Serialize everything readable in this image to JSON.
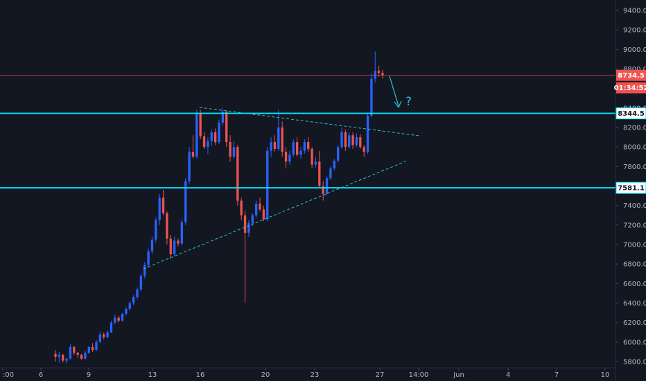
{
  "chart_data": {
    "type": "candlestick",
    "y_ticks": [
      "9400.0",
      "9200.0",
      "9000.0",
      "8800.0",
      "8600.0",
      "8400.0",
      "8200.0",
      "8000.0",
      "7800.0",
      "7600.0",
      "7400.0",
      "7200.0",
      "7000.0",
      "6800.0",
      "6600.0",
      "6400.0",
      "6200.0",
      "6000.0",
      "5800.0"
    ],
    "y_tick_values": [
      9400,
      9200,
      9000,
      8800,
      8600,
      8400,
      8200,
      8000,
      7800,
      7600,
      7400,
      7200,
      7000,
      6800,
      6600,
      6400,
      6200,
      6000,
      5800
    ],
    "x_ticks": [
      ":00",
      "6",
      "9",
      "13",
      "16",
      "20",
      "23",
      "27",
      "14:00",
      "Jun",
      "4",
      "7",
      "10"
    ],
    "ylim": [
      5790,
      9510
    ],
    "price_levels": [
      {
        "label": "8734.5",
        "value": 8734.5,
        "color": "#ef5350",
        "style": "thin"
      },
      {
        "label": "8344.5",
        "value": 8344.5,
        "color": "#00e5ff",
        "style": "thick"
      },
      {
        "label": "7581.1",
        "value": 7581.1,
        "color": "#00e5ff",
        "style": "thick"
      }
    ],
    "countdown": "01:34:52",
    "annotation": "?",
    "trendlines": [
      {
        "name": "upper-trendline",
        "from": {
          "x": "16",
          "y": 8390
        },
        "to": {
          "x": "1 Jun 00:00",
          "y": 8120
        },
        "style": "dashed",
        "color": "#26c6da"
      },
      {
        "name": "lower-trendline",
        "from": {
          "x": "12",
          "y": 6760
        },
        "to": {
          "x": "1 Jun 00:00",
          "y": 7840
        },
        "style": "dashed",
        "color": "#26c6da"
      }
    ],
    "colors": {
      "up": "#2962ff",
      "down": "#ef5350",
      "background": "#131722",
      "axis_text": "#b2b5be"
    },
    "candles": [
      [
        5880,
        5920,
        5800,
        5850
      ],
      [
        5850,
        5900,
        5790,
        5870
      ],
      [
        5870,
        5880,
        5790,
        5810
      ],
      [
        5810,
        5840,
        5780,
        5830
      ],
      [
        5830,
        5980,
        5820,
        5950
      ],
      [
        5950,
        5960,
        5870,
        5890
      ],
      [
        5890,
        5900,
        5840,
        5870
      ],
      [
        5870,
        5880,
        5820,
        5830
      ],
      [
        5830,
        5910,
        5820,
        5890
      ],
      [
        5890,
        5960,
        5880,
        5950
      ],
      [
        5950,
        5990,
        5900,
        5920
      ],
      [
        5920,
        6020,
        5910,
        6000
      ],
      [
        6000,
        6110,
        5990,
        6080
      ],
      [
        6080,
        6100,
        6030,
        6050
      ],
      [
        6050,
        6120,
        6040,
        6100
      ],
      [
        6100,
        6220,
        6090,
        6200
      ],
      [
        6200,
        6280,
        6180,
        6250
      ],
      [
        6250,
        6270,
        6200,
        6220
      ],
      [
        6220,
        6300,
        6210,
        6290
      ],
      [
        6290,
        6360,
        6270,
        6340
      ],
      [
        6340,
        6420,
        6320,
        6400
      ],
      [
        6400,
        6480,
        6380,
        6460
      ],
      [
        6460,
        6560,
        6440,
        6540
      ],
      [
        6540,
        6700,
        6520,
        6680
      ],
      [
        6680,
        6820,
        6650,
        6790
      ],
      [
        6790,
        6960,
        6760,
        6930
      ],
      [
        6930,
        7080,
        6900,
        7050
      ],
      [
        7050,
        7280,
        7020,
        7250
      ],
      [
        7250,
        7520,
        7200,
        7480
      ],
      [
        7480,
        7560,
        7300,
        7320
      ],
      [
        7320,
        7340,
        7000,
        7060
      ],
      [
        7060,
        7100,
        6850,
        6900
      ],
      [
        6900,
        7080,
        6880,
        7040
      ],
      [
        7040,
        7060,
        6980,
        7010
      ],
      [
        7010,
        7260,
        6990,
        7230
      ],
      [
        7230,
        7680,
        7200,
        7650
      ],
      [
        7650,
        8000,
        7620,
        7950
      ],
      [
        7950,
        8120,
        7880,
        7900
      ],
      [
        7900,
        8380,
        7880,
        8340
      ],
      [
        8340,
        8380,
        8080,
        8110
      ],
      [
        8110,
        8150,
        7980,
        8000
      ],
      [
        8000,
        8100,
        7930,
        8060
      ],
      [
        8060,
        8180,
        8010,
        8150
      ],
      [
        8150,
        8190,
        8020,
        8050
      ],
      [
        8050,
        8280,
        8030,
        8250
      ],
      [
        8250,
        8400,
        8220,
        8360
      ],
      [
        8360,
        8380,
        8000,
        8050
      ],
      [
        8050,
        8120,
        7850,
        7900
      ],
      [
        7900,
        8060,
        7880,
        8000
      ],
      [
        8000,
        8020,
        7400,
        7450
      ],
      [
        7450,
        7480,
        7250,
        7300
      ],
      [
        7300,
        7350,
        6400,
        7120
      ],
      [
        7120,
        7250,
        7080,
        7220
      ],
      [
        7220,
        7320,
        7190,
        7300
      ],
      [
        7300,
        7450,
        7280,
        7420
      ],
      [
        7420,
        7480,
        7340,
        7360
      ],
      [
        7360,
        7400,
        7240,
        7260
      ],
      [
        7260,
        8000,
        7240,
        7960
      ],
      [
        7960,
        8100,
        7900,
        8050
      ],
      [
        8050,
        8120,
        7950,
        7980
      ],
      [
        7980,
        8380,
        7960,
        8200
      ],
      [
        8200,
        8260,
        7900,
        7950
      ],
      [
        7950,
        8000,
        7780,
        7850
      ],
      [
        7850,
        7960,
        7820,
        7920
      ],
      [
        7920,
        8080,
        7900,
        8050
      ],
      [
        8050,
        8100,
        7900,
        7920
      ],
      [
        7920,
        8000,
        7880,
        7960
      ],
      [
        7960,
        8080,
        7930,
        8050
      ],
      [
        8050,
        8100,
        7950,
        7980
      ],
      [
        7980,
        8000,
        7780,
        7820
      ],
      [
        7820,
        7900,
        7790,
        7850
      ],
      [
        7850,
        7960,
        7580,
        7600
      ],
      [
        7600,
        7650,
        7450,
        7520
      ],
      [
        7520,
        7700,
        7500,
        7680
      ],
      [
        7680,
        7800,
        7660,
        7780
      ],
      [
        7780,
        7880,
        7760,
        7860
      ],
      [
        7860,
        8020,
        7840,
        8000
      ],
      [
        8000,
        8200,
        7980,
        8150
      ],
      [
        8150,
        8180,
        7960,
        8000
      ],
      [
        8000,
        8150,
        7980,
        8120
      ],
      [
        8120,
        8150,
        7980,
        8020
      ],
      [
        8020,
        8140,
        8000,
        8100
      ],
      [
        8100,
        8130,
        7980,
        8000
      ],
      [
        8000,
        8020,
        7900,
        7950
      ],
      [
        7950,
        8350,
        7930,
        8320
      ],
      [
        8320,
        8760,
        8300,
        8700
      ],
      [
        8700,
        8980,
        8660,
        8780
      ],
      [
        8780,
        8830,
        8720,
        8760
      ],
      [
        8760,
        8790,
        8700,
        8734.5
      ]
    ]
  }
}
